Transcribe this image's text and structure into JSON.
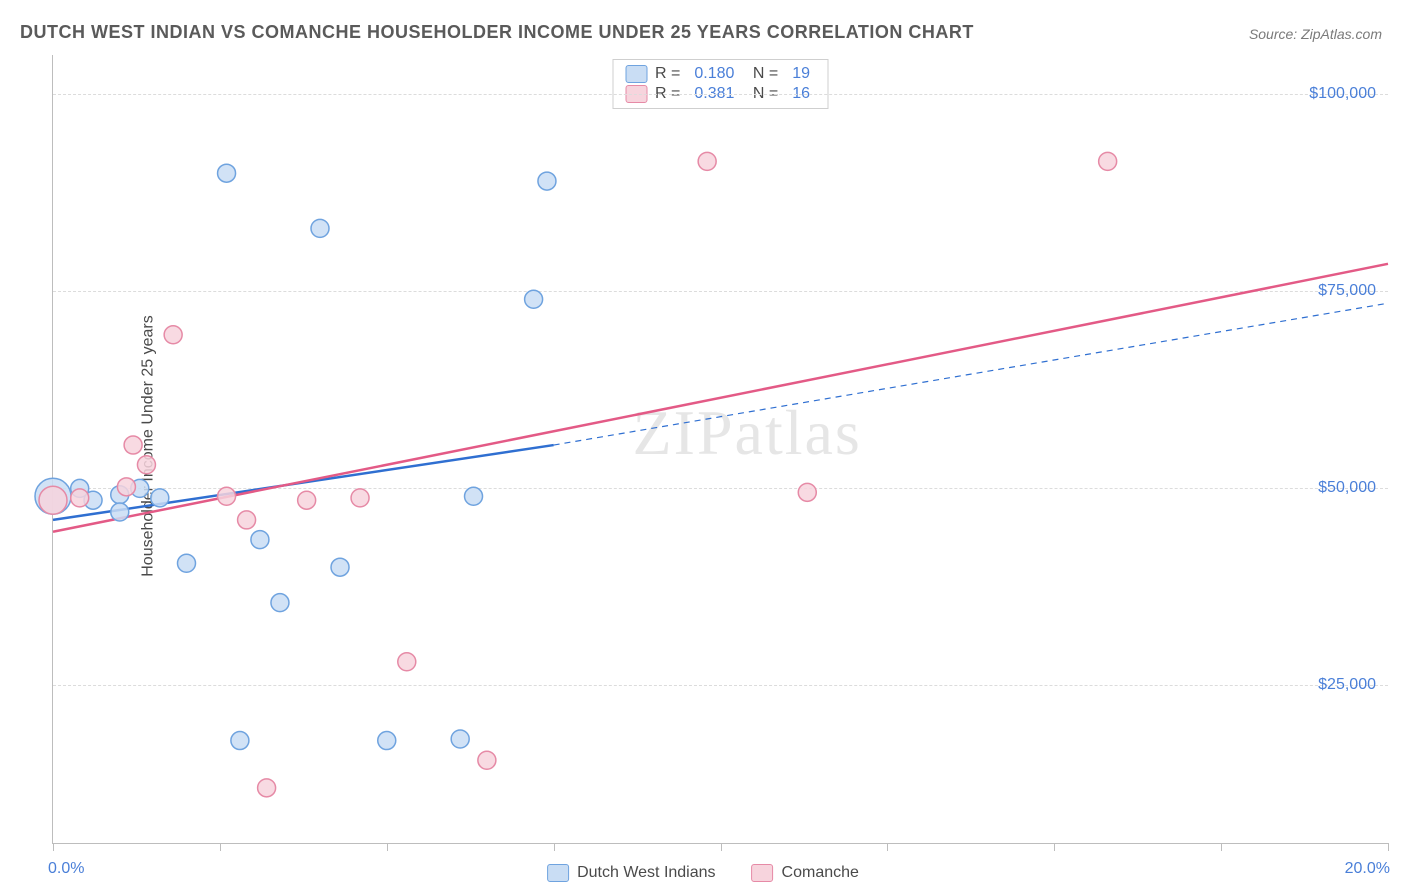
{
  "title": "DUTCH WEST INDIAN VS COMANCHE HOUSEHOLDER INCOME UNDER 25 YEARS CORRELATION CHART",
  "source": "Source: ZipAtlas.com",
  "ylabel": "Householder Income Under 25 years",
  "watermark": "ZIPatlas",
  "chart": {
    "type": "scatter",
    "xlim": [
      0,
      20
    ],
    "ylim": [
      5000,
      105000
    ],
    "x_ticks": [
      0,
      2.5,
      5,
      7.5,
      10,
      12.5,
      15,
      17.5,
      20
    ],
    "x_min_label": "0.0%",
    "x_max_label": "20.0%",
    "y_grid": [
      25000,
      50000,
      75000,
      100000
    ],
    "y_tick_labels": [
      "$25,000",
      "$50,000",
      "$75,000",
      "$100,000"
    ],
    "background_color": "#ffffff",
    "grid_color": "#dcdcdc",
    "axis_color": "#bdbdbd",
    "tick_label_color": "#4a7fd8",
    "series": [
      {
        "name": "Dutch West Indians",
        "fill": "#c9ddf4",
        "stroke": "#6fa3df",
        "line_color": "#2f6fd1",
        "r_value": "0.180",
        "n_value": "19",
        "marker_radius": 9,
        "points": [
          {
            "x": 0.0,
            "y": 49000,
            "r": 18
          },
          {
            "x": 0.4,
            "y": 50000
          },
          {
            "x": 0.6,
            "y": 48500
          },
          {
            "x": 1.0,
            "y": 49200
          },
          {
            "x": 1.0,
            "y": 47000
          },
          {
            "x": 1.3,
            "y": 50000
          },
          {
            "x": 1.6,
            "y": 48800
          },
          {
            "x": 2.0,
            "y": 40500
          },
          {
            "x": 2.6,
            "y": 90000
          },
          {
            "x": 2.8,
            "y": 18000
          },
          {
            "x": 3.1,
            "y": 43500
          },
          {
            "x": 3.4,
            "y": 35500
          },
          {
            "x": 4.0,
            "y": 83000
          },
          {
            "x": 4.3,
            "y": 40000
          },
          {
            "x": 5.0,
            "y": 18000
          },
          {
            "x": 6.1,
            "y": 18200
          },
          {
            "x": 6.3,
            "y": 49000
          },
          {
            "x": 7.2,
            "y": 74000
          },
          {
            "x": 7.4,
            "y": 89000
          }
        ],
        "trend": {
          "x1": 0,
          "y1": 46000,
          "x2": 7.5,
          "y2": 55500,
          "dash_x2": 20,
          "dash_y2": 73500
        }
      },
      {
        "name": "Comanche",
        "fill": "#f7d4dd",
        "stroke": "#e68aa6",
        "line_color": "#e35a86",
        "r_value": "0.381",
        "n_value": "16",
        "marker_radius": 9,
        "points": [
          {
            "x": 0.0,
            "y": 48500,
            "r": 14
          },
          {
            "x": 0.4,
            "y": 48800
          },
          {
            "x": 1.1,
            "y": 50200
          },
          {
            "x": 1.2,
            "y": 55500
          },
          {
            "x": 1.4,
            "y": 53000
          },
          {
            "x": 1.8,
            "y": 69500
          },
          {
            "x": 2.6,
            "y": 49000
          },
          {
            "x": 2.9,
            "y": 46000
          },
          {
            "x": 3.2,
            "y": 12000
          },
          {
            "x": 3.8,
            "y": 48500
          },
          {
            "x": 4.6,
            "y": 48800
          },
          {
            "x": 5.3,
            "y": 28000
          },
          {
            "x": 6.5,
            "y": 15500
          },
          {
            "x": 9.8,
            "y": 91500
          },
          {
            "x": 11.3,
            "y": 49500
          },
          {
            "x": 15.8,
            "y": 91500
          }
        ],
        "trend": {
          "x1": 0,
          "y1": 44500,
          "x2": 20,
          "y2": 78500
        }
      }
    ],
    "bottom_legend": [
      {
        "label": "Dutch West Indians",
        "fill": "#c9ddf4",
        "stroke": "#6fa3df"
      },
      {
        "label": "Comanche",
        "fill": "#f7d4dd",
        "stroke": "#e68aa6"
      }
    ]
  }
}
